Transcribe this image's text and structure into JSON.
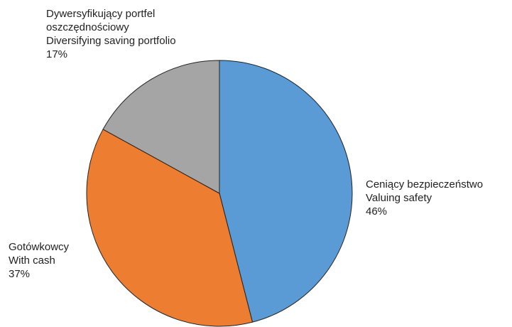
{
  "chart_data": {
    "type": "pie",
    "categories": [
      [
        "Ceniący bezpieczeństwo",
        "Valuing safety"
      ],
      [
        "Gotówkowcy",
        "With cash"
      ],
      [
        "Dywersyfikujący portfel",
        "oszczędnościowy",
        "Diversifying saving portfolio"
      ]
    ],
    "values": [
      46,
      37,
      17
    ],
    "value_labels": [
      "46%",
      "37%",
      "17%"
    ],
    "colors": [
      "#5b9bd5",
      "#ed7d31",
      "#a5a5a5"
    ]
  }
}
